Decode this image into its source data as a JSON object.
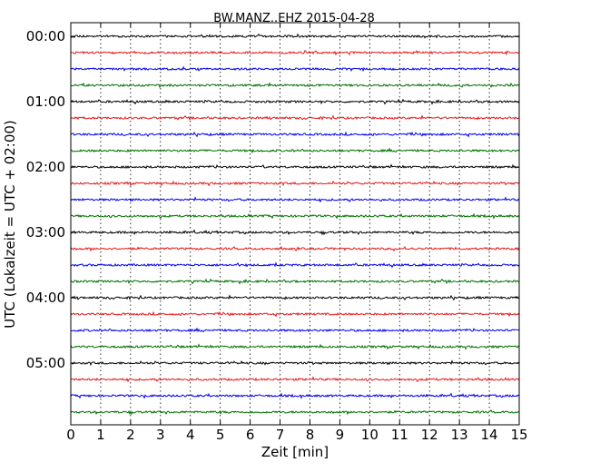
{
  "chart_data": {
    "type": "line",
    "title": "BW.MANZ..EHZ 2015-04-28",
    "xlabel": "Zeit  [min]",
    "ylabel": "UTC (Lokalzeit = UTC + 02:00)",
    "xlim": [
      0,
      15
    ],
    "x_ticks": [
      "0",
      "1",
      "2",
      "3",
      "4",
      "5",
      "6",
      "7",
      "8",
      "9",
      "10",
      "11",
      "12",
      "13",
      "14",
      "15"
    ],
    "y_ticks": [
      "00:00",
      "01:00",
      "02:00",
      "03:00",
      "04:00",
      "05:00"
    ],
    "grid": "x-dotted",
    "trace_interval_minutes": 15,
    "trace_colors": [
      "#000000",
      "#e41a1c",
      "#0000ee",
      "#007000"
    ],
    "trace_start_times": [
      "00:00",
      "00:15",
      "00:30",
      "00:45",
      "01:00",
      "01:15",
      "01:30",
      "01:45",
      "02:00",
      "02:15",
      "02:30",
      "02:45",
      "03:00",
      "03:15",
      "03:30",
      "03:45",
      "04:00",
      "04:15",
      "04:30",
      "04:45",
      "05:00",
      "05:15",
      "05:30",
      "05:45"
    ]
  }
}
